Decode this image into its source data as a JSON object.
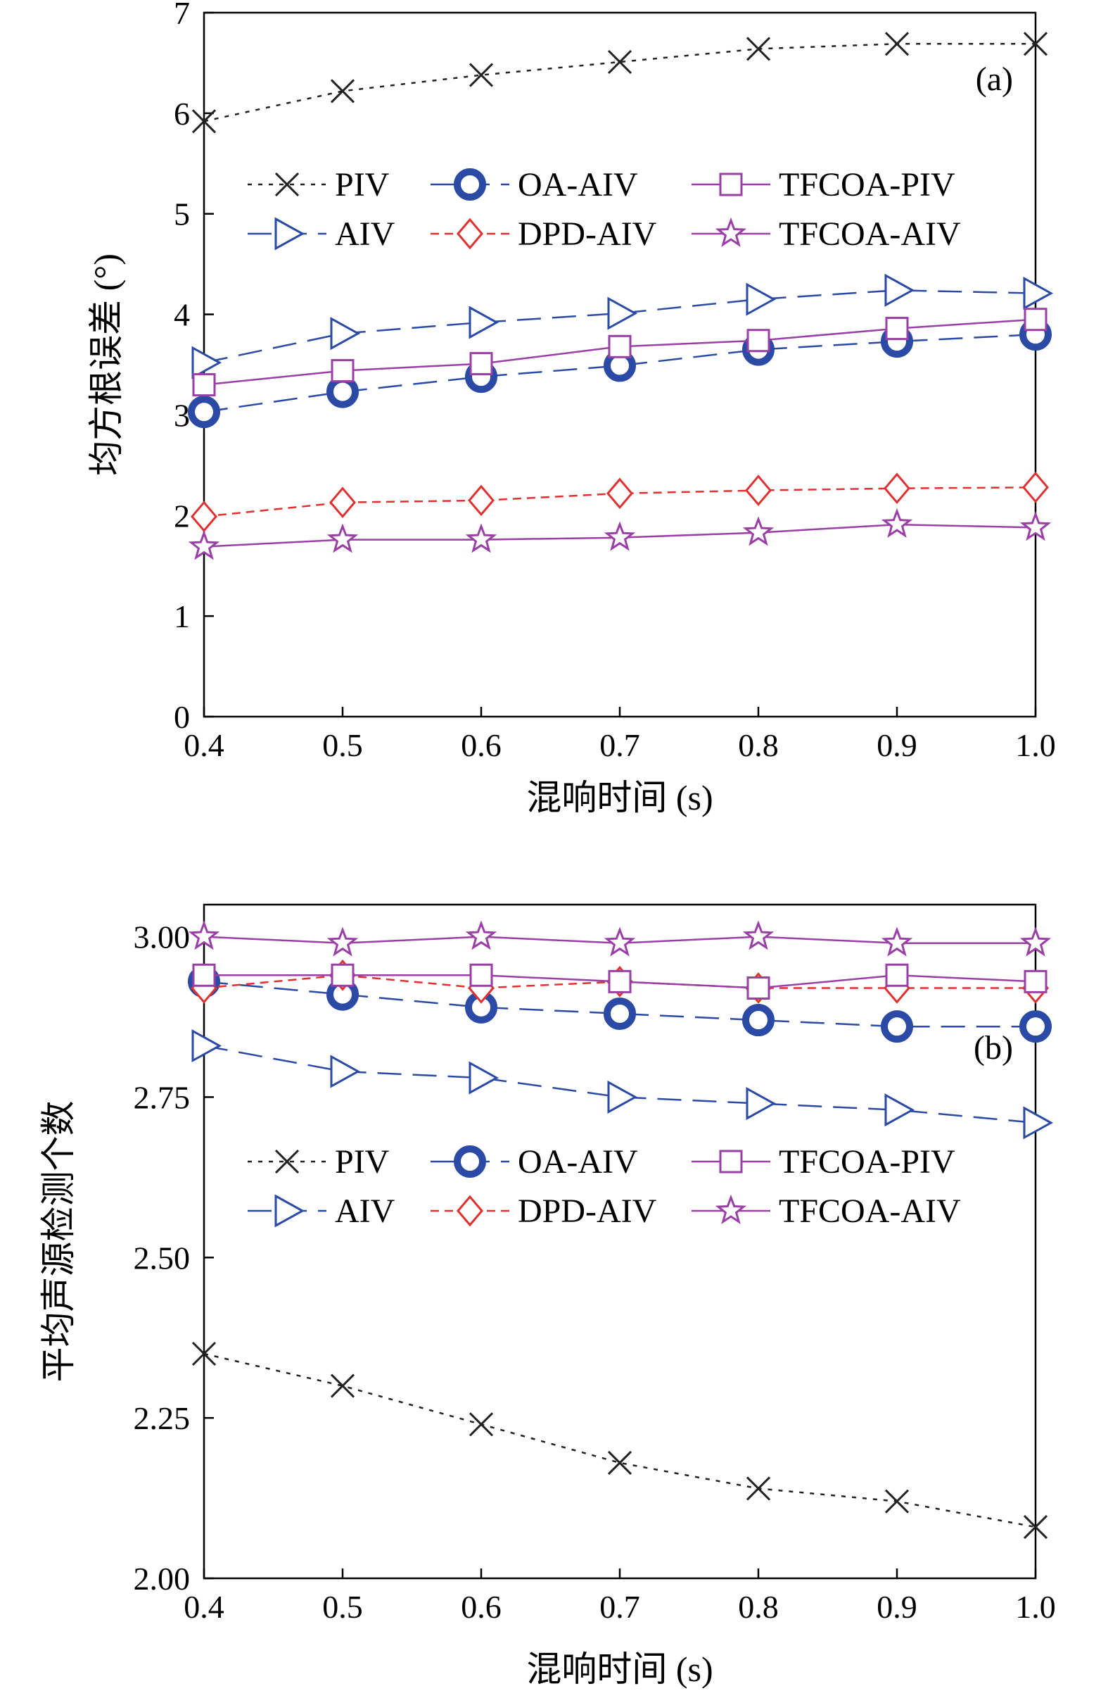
{
  "chart_data": [
    {
      "type": "line",
      "panel_label": "(a)",
      "xlabel": "混响时间 (s)",
      "ylabel": "均方根误差 (°)",
      "xlim": [
        0.4,
        1.0
      ],
      "ylim": [
        0,
        7
      ],
      "x": [
        0.4,
        0.5,
        0.6,
        0.7,
        0.8,
        0.9,
        1.0
      ],
      "x_tick_labels": [
        "0.4",
        "0.5",
        "0.6",
        "0.7",
        "0.8",
        "0.9",
        "1.0"
      ],
      "y_ticks": [
        0,
        1,
        2,
        3,
        4,
        5,
        6,
        7
      ],
      "y_tick_labels": [
        "0",
        "1",
        "2",
        "3",
        "4",
        "5",
        "6",
        "7"
      ],
      "legend_position": "upper-middle",
      "series": [
        {
          "name": "PIV",
          "values": [
            5.92,
            6.22,
            6.38,
            6.51,
            6.64,
            6.69,
            6.69
          ],
          "color": "#222222",
          "marker": "x",
          "dash": "short"
        },
        {
          "name": "AIV",
          "values": [
            3.52,
            3.81,
            3.92,
            4.01,
            4.15,
            4.24,
            4.21
          ],
          "color": "#2a4aa6",
          "marker": "triangle-right",
          "dash": "long"
        },
        {
          "name": "OA-AIV",
          "values": [
            3.03,
            3.23,
            3.38,
            3.49,
            3.65,
            3.73,
            3.8
          ],
          "color": "#2a4aa6",
          "marker": "circle",
          "dash": "long"
        },
        {
          "name": "DPD-AIV",
          "values": [
            1.99,
            2.13,
            2.15,
            2.22,
            2.25,
            2.27,
            2.28
          ],
          "color": "#e03030",
          "marker": "diamond",
          "dash": "medium"
        },
        {
          "name": "TFCOA-PIV",
          "values": [
            3.3,
            3.44,
            3.51,
            3.68,
            3.74,
            3.86,
            3.95
          ],
          "color": "#9a3fa6",
          "marker": "square",
          "dash": "solid"
        },
        {
          "name": "TFCOA-AIV",
          "values": [
            1.69,
            1.76,
            1.76,
            1.78,
            1.83,
            1.91,
            1.88
          ],
          "color": "#9a3fa6",
          "marker": "star",
          "dash": "solid"
        }
      ]
    },
    {
      "type": "line",
      "panel_label": "(b)",
      "xlabel": "混响时间 (s)",
      "ylabel": "平均声源检测个数",
      "xlim": [
        0.4,
        1.0
      ],
      "ylim": [
        2.0,
        3.05
      ],
      "x": [
        0.4,
        0.5,
        0.6,
        0.7,
        0.8,
        0.9,
        1.0
      ],
      "x_tick_labels": [
        "0.4",
        "0.5",
        "0.6",
        "0.7",
        "0.8",
        "0.9",
        "1.0"
      ],
      "y_ticks": [
        2.0,
        2.25,
        2.5,
        2.75,
        3.0
      ],
      "y_tick_labels": [
        "2.00",
        "2.25",
        "2.50",
        "2.75",
        "3.00"
      ],
      "legend_position": "lower-middle",
      "series": [
        {
          "name": "PIV",
          "values": [
            2.35,
            2.3,
            2.24,
            2.18,
            2.14,
            2.12,
            2.08
          ],
          "color": "#222222",
          "marker": "x",
          "dash": "short"
        },
        {
          "name": "AIV",
          "values": [
            2.83,
            2.79,
            2.78,
            2.75,
            2.74,
            2.73,
            2.71
          ],
          "color": "#2a4aa6",
          "marker": "triangle-right",
          "dash": "long"
        },
        {
          "name": "OA-AIV",
          "values": [
            2.93,
            2.91,
            2.89,
            2.88,
            2.87,
            2.86,
            2.86
          ],
          "color": "#2a4aa6",
          "marker": "circle",
          "dash": "long"
        },
        {
          "name": "DPD-AIV",
          "values": [
            2.92,
            2.94,
            2.92,
            2.93,
            2.92,
            2.92,
            2.92
          ],
          "color": "#e03030",
          "marker": "diamond",
          "dash": "medium"
        },
        {
          "name": "TFCOA-PIV",
          "values": [
            2.94,
            2.94,
            2.94,
            2.93,
            2.92,
            2.94,
            2.93
          ],
          "color": "#9a3fa6",
          "marker": "square",
          "dash": "solid"
        },
        {
          "name": "TFCOA-AIV",
          "values": [
            3.0,
            2.99,
            3.0,
            2.99,
            3.0,
            2.99,
            2.99
          ],
          "color": "#9a3fa6",
          "marker": "star",
          "dash": "solid"
        }
      ]
    }
  ]
}
